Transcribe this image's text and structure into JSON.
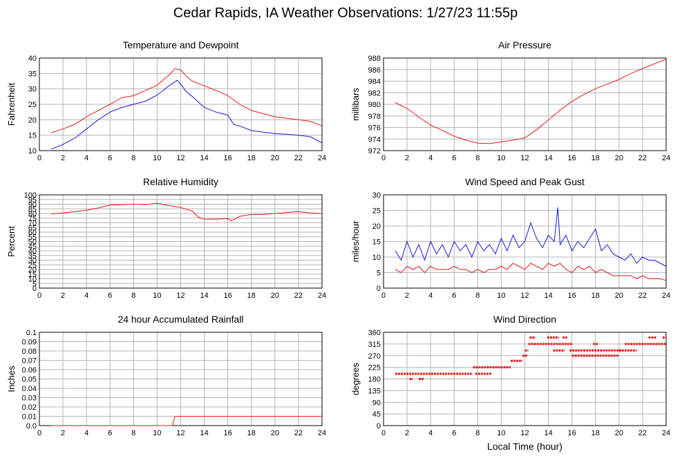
{
  "title": "Cedar Rapids, IA Weather Observations: 1/27/23 11:55p",
  "x_axis": {
    "label": "Local Time (hour)",
    "ticks": [
      0,
      2,
      4,
      6,
      8,
      10,
      12,
      14,
      16,
      18,
      20,
      22,
      24
    ],
    "range": [
      0,
      24
    ]
  },
  "colors": {
    "red": "#e41a1a",
    "blue": "#1414d8",
    "grid": "#b4b4b4"
  },
  "chart_data": [
    {
      "id": "temp",
      "type": "line",
      "title": "Temperature and Dewpoint",
      "ylabel": "Fahrenheit",
      "ylim": [
        10,
        40
      ],
      "yticks": [
        10,
        15,
        20,
        25,
        30,
        35,
        40
      ],
      "xlim": [
        0,
        24
      ],
      "grid": true,
      "series": [
        {
          "color": "#e41a1a",
          "x": [
            1,
            2,
            3,
            4,
            5,
            6,
            7,
            8,
            9,
            10,
            11,
            11.5,
            12,
            12.5,
            13,
            14,
            15,
            16,
            17,
            18,
            19,
            20,
            21,
            22,
            23,
            24
          ],
          "y": [
            15.8,
            17,
            18.5,
            21,
            23,
            25,
            27.2,
            27.8,
            29.5,
            31.2,
            34.5,
            36.5,
            36.2,
            34,
            32.5,
            31,
            29.5,
            27.8,
            25,
            23,
            22,
            21,
            20.5,
            20,
            19.5,
            18
          ]
        },
        {
          "color": "#1414d8",
          "x": [
            1,
            2,
            3,
            4,
            5,
            6,
            7,
            8,
            9,
            10,
            11,
            11.7,
            12,
            12.5,
            13,
            14,
            15,
            16,
            16.5,
            17,
            18,
            19,
            20,
            21,
            22,
            23,
            24
          ],
          "y": [
            10.5,
            12,
            14,
            17,
            20,
            22.5,
            24,
            25,
            26,
            28,
            31,
            32.8,
            31.5,
            29,
            27.5,
            24,
            22.5,
            21.5,
            18.5,
            18,
            16.5,
            16,
            15.5,
            15.3,
            15,
            14.5,
            12.5
          ]
        }
      ]
    },
    {
      "id": "pres",
      "type": "line",
      "title": "Air Pressure",
      "ylabel": "millibars",
      "ylim": [
        972,
        988
      ],
      "yticks": [
        972,
        974,
        976,
        978,
        980,
        982,
        984,
        986,
        988
      ],
      "xlim": [
        0,
        24
      ],
      "grid": true,
      "series": [
        {
          "color": "#e41a1a",
          "x": [
            1,
            2,
            3,
            4,
            5,
            6,
            7,
            8,
            9,
            10,
            11,
            12,
            13,
            14,
            15,
            16,
            17,
            18,
            19,
            20,
            21,
            22,
            23,
            24
          ],
          "y": [
            980.3,
            979.3,
            977.8,
            976.4,
            975.5,
            974.5,
            973.8,
            973.3,
            973.2,
            973.5,
            973.8,
            974.2,
            975.6,
            977.3,
            979,
            980.5,
            981.7,
            982.7,
            983.5,
            984.3,
            985.3,
            986.2,
            987,
            987.8
          ]
        }
      ]
    },
    {
      "id": "rh",
      "type": "line",
      "title": "Relative Humidity",
      "ylabel": "Percent",
      "ylim": [
        0,
        100
      ],
      "yticks": [
        0,
        5,
        10,
        15,
        20,
        25,
        30,
        35,
        40,
        45,
        50,
        55,
        60,
        65,
        70,
        75,
        80,
        85,
        90,
        95,
        100
      ],
      "xlim": [
        0,
        24
      ],
      "grid": true,
      "series": [
        {
          "color": "#e41a1a",
          "x": [
            1,
            2,
            3,
            4,
            5,
            6,
            7,
            8,
            9,
            10,
            11,
            12,
            13,
            13.5,
            14,
            15,
            16,
            16.3,
            17,
            18,
            19,
            20,
            21,
            22,
            23,
            24
          ],
          "y": [
            79.5,
            80.5,
            82,
            83.5,
            86,
            89,
            89.5,
            90,
            89.5,
            91,
            88.5,
            86.5,
            82.5,
            76,
            74,
            74,
            74.5,
            72,
            77,
            79,
            79,
            80,
            81,
            82,
            80.5,
            80
          ]
        }
      ]
    },
    {
      "id": "wind",
      "type": "line",
      "title": "Wind Speed and Peak Gust",
      "ylabel": "miles/hour",
      "ylim": [
        0,
        30
      ],
      "yticks": [
        0,
        5,
        10,
        15,
        20,
        25,
        30
      ],
      "xlim": [
        0,
        24
      ],
      "grid": true,
      "series": [
        {
          "color": "#1414d8",
          "x": [
            1,
            1.5,
            2,
            2.5,
            3,
            3.5,
            4,
            4.5,
            5,
            5.5,
            6,
            6.5,
            7,
            7.5,
            8,
            8.5,
            9,
            9.5,
            10,
            10.5,
            11,
            11.5,
            12,
            12.5,
            13,
            13.5,
            14,
            14.5,
            14.8,
            15,
            15.5,
            16,
            16.5,
            17,
            17.5,
            18,
            18.5,
            19,
            19.5,
            20,
            20.5,
            21,
            21.5,
            22,
            22.5,
            23,
            23.5,
            24
          ],
          "y": [
            12,
            9,
            15,
            10,
            14,
            9,
            15,
            11,
            14,
            10,
            15,
            12,
            14,
            10,
            15,
            12,
            14,
            11,
            16,
            12,
            17,
            13,
            15,
            21,
            16,
            13,
            17,
            15,
            26,
            14,
            17,
            12,
            15,
            13,
            16,
            19,
            12,
            14,
            11,
            10,
            9,
            11,
            8,
            10,
            9,
            9,
            8,
            7
          ]
        },
        {
          "color": "#e41a1a",
          "x": [
            1,
            1.5,
            2,
            2.5,
            3,
            3.5,
            4,
            4.5,
            5,
            5.5,
            6,
            6.5,
            7,
            7.5,
            8,
            8.5,
            9,
            9.5,
            10,
            10.5,
            11,
            11.5,
            12,
            12.5,
            13,
            13.5,
            14,
            14.5,
            15,
            15.5,
            16,
            16.5,
            17,
            17.5,
            18,
            18.5,
            19,
            19.5,
            20,
            20.5,
            21,
            21.5,
            22,
            22.5,
            23,
            23.5,
            24
          ],
          "y": [
            6,
            5,
            7,
            6,
            7,
            5,
            7,
            6,
            6,
            6,
            7,
            6,
            6,
            5,
            6,
            5,
            6,
            6,
            7,
            6,
            8,
            7,
            6,
            8,
            7,
            6,
            8,
            7,
            8,
            6,
            5,
            7,
            6,
            7,
            5,
            6,
            5,
            4,
            4,
            4,
            4,
            3,
            4,
            3,
            3,
            3,
            2.5
          ]
        }
      ]
    },
    {
      "id": "rain",
      "type": "line",
      "title": "24 hour Accumulated Rainfall",
      "ylabel": "Inches",
      "ylim": [
        0,
        0.1
      ],
      "yticks": [
        0,
        0.01,
        0.02,
        0.03,
        0.04,
        0.05,
        0.06,
        0.07,
        0.08,
        0.09,
        0.1
      ],
      "yticklabels": [
        "0.0",
        "0.01",
        "0.02",
        "0.03",
        "0.04",
        "0.05",
        "0.06",
        "0.07",
        "0.08",
        "0.09",
        "0.1"
      ],
      "xlim": [
        0,
        24
      ],
      "grid": true,
      "series": [
        {
          "color": "#e41a1a",
          "x": [
            1,
            11.3,
            11.5,
            24
          ],
          "y": [
            0,
            0,
            0.01,
            0.01
          ]
        }
      ]
    },
    {
      "id": "dir",
      "type": "scatter",
      "title": "Wind Direction",
      "ylabel": "degrees",
      "ylim": [
        0,
        360
      ],
      "yticks": [
        0,
        45,
        90,
        135,
        180,
        225,
        270,
        315,
        360
      ],
      "xlim": [
        0,
        24
      ],
      "grid": true,
      "series": [
        {
          "color": "#e41a1a",
          "segments": [
            {
              "x0": 1,
              "x1": 7.5,
              "y": 200
            },
            {
              "x0": 2.2,
              "x1": 2.5,
              "y": 180
            },
            {
              "x0": 3,
              "x1": 3.4,
              "y": 180
            },
            {
              "x0": 7.8,
              "x1": 9.2,
              "y": 200
            },
            {
              "x0": 7.6,
              "x1": 10.8,
              "y": 225
            },
            {
              "x0": 10.8,
              "x1": 11.8,
              "y": 250
            },
            {
              "x0": 11.8,
              "x1": 12.2,
              "y": 270
            },
            {
              "x0": 12,
              "x1": 12.3,
              "y": 290
            },
            {
              "x0": 12.3,
              "x1": 16,
              "y": 315
            },
            {
              "x0": 12.4,
              "x1": 12.9,
              "y": 340
            },
            {
              "x0": 13.9,
              "x1": 14.9,
              "y": 340
            },
            {
              "x0": 15.2,
              "x1": 15.6,
              "y": 340
            },
            {
              "x0": 14.4,
              "x1": 15.4,
              "y": 290
            },
            {
              "x0": 15.8,
              "x1": 20.2,
              "y": 290
            },
            {
              "x0": 16,
              "x1": 20,
              "y": 270
            },
            {
              "x0": 17.8,
              "x1": 18.2,
              "y": 315
            },
            {
              "x0": 20,
              "x1": 21.5,
              "y": 290
            },
            {
              "x0": 20.5,
              "x1": 24,
              "y": 315
            },
            {
              "x0": 22.5,
              "x1": 23.2,
              "y": 340
            },
            {
              "x0": 23.7,
              "x1": 24,
              "y": 340
            }
          ]
        }
      ]
    }
  ]
}
